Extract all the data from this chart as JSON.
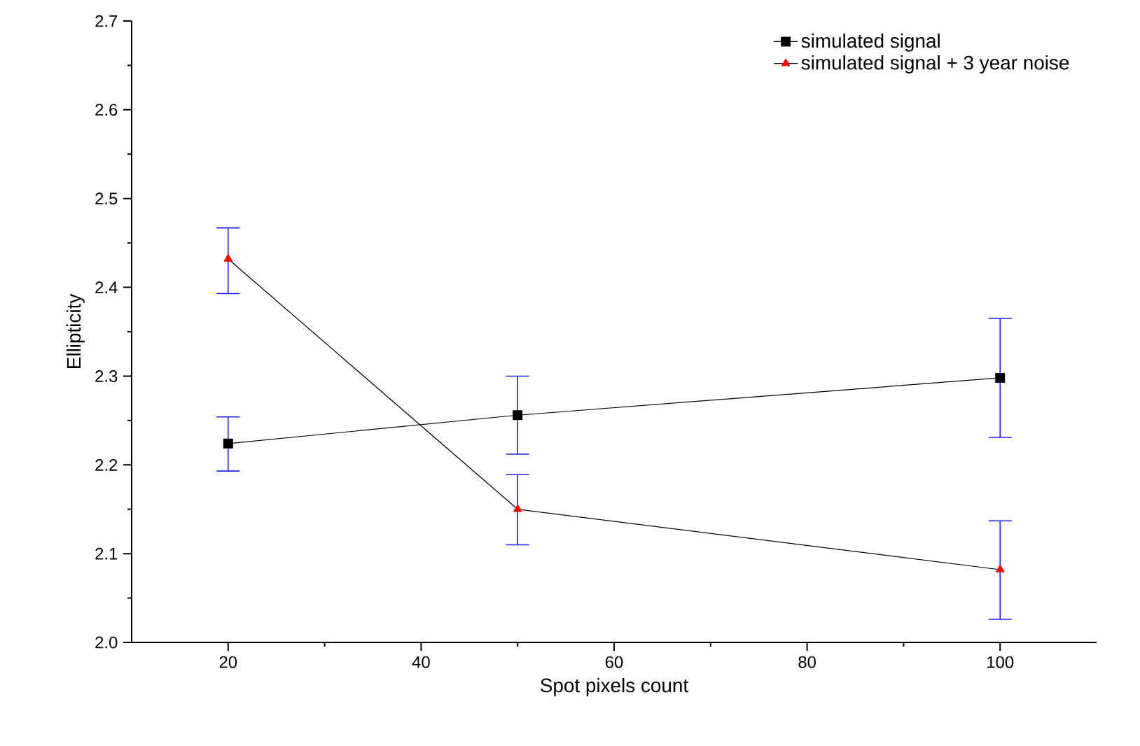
{
  "chart_data": {
    "type": "line",
    "xlabel": "Spot pixels count",
    "ylabel": "Ellipticity",
    "x": [
      20,
      50,
      100
    ],
    "series": [
      {
        "name": "simulated signal",
        "color": "#000000",
        "marker": "square",
        "values": [
          2.224,
          2.256,
          2.298
        ],
        "errors": [
          [
            2.193,
            2.254
          ],
          [
            2.212,
            2.3
          ],
          [
            2.231,
            2.365
          ]
        ]
      },
      {
        "name": "simulated signal + 3 year noise",
        "color": "#ff0000",
        "marker": "triangle",
        "values": [
          2.432,
          2.15,
          2.082
        ],
        "errors": [
          [
            2.393,
            2.467
          ],
          [
            2.11,
            2.189
          ],
          [
            2.026,
            2.137
          ]
        ]
      }
    ],
    "xlim": [
      10,
      110
    ],
    "xticks": [
      20,
      40,
      60,
      80,
      100
    ],
    "ylim": [
      2.0,
      2.7
    ],
    "yticks": [
      {
        "value": 2.0,
        "label": "2.0"
      },
      {
        "value": 2.1,
        "label": "2.1"
      },
      {
        "value": 2.2,
        "label": "2.2"
      },
      {
        "value": 2.3,
        "label": "2.3"
      },
      {
        "value": 2.4,
        "label": "2.4"
      },
      {
        "value": 2.5,
        "label": "2.5"
      },
      {
        "value": 2.6,
        "label": "2.6"
      },
      {
        "value": 2.7,
        "label": "2.7"
      }
    ],
    "legend": "top right",
    "grid": false,
    "line_style": "solid"
  }
}
